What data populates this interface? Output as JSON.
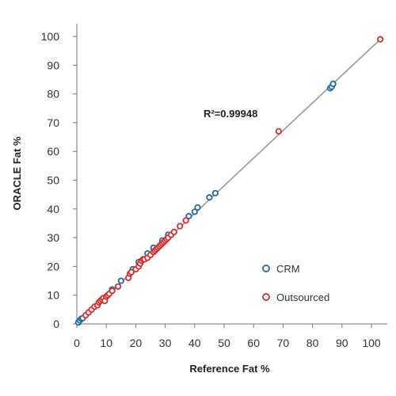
{
  "chart_data": {
    "type": "scatter",
    "xlabel": "Reference Fat %",
    "ylabel": "ORACLE Fat %",
    "xlim": [
      0,
      105
    ],
    "ylim": [
      0,
      102
    ],
    "x_ticks": [
      "0",
      "10",
      "20",
      "30",
      "40",
      "50",
      "60",
      "70",
      "80",
      "90",
      "100"
    ],
    "y_ticks": [
      "0",
      "10",
      "20",
      "30",
      "40",
      "50",
      "60",
      "70",
      "80",
      "90",
      "100"
    ],
    "grid": false,
    "legend_position": "bottom-right",
    "annotation": "R²=0.99948",
    "fit_line": {
      "x": [
        0,
        103
      ],
      "y": [
        0,
        99
      ]
    },
    "series": [
      {
        "name": "CRM",
        "color": "#1f6aa5",
        "points": [
          [
            0.5,
            0.5
          ],
          [
            1,
            1.2
          ],
          [
            1.5,
            1.8
          ],
          [
            2,
            2
          ],
          [
            12,
            12
          ],
          [
            15,
            15
          ],
          [
            19,
            19
          ],
          [
            21,
            21.5
          ],
          [
            24,
            24.5
          ],
          [
            26,
            26.5
          ],
          [
            29,
            29
          ],
          [
            31,
            31
          ],
          [
            38,
            37.5
          ],
          [
            40,
            39
          ],
          [
            41,
            40.5
          ],
          [
            45,
            44
          ],
          [
            47,
            45.5
          ],
          [
            86,
            82
          ],
          [
            86.5,
            82.5
          ],
          [
            87,
            83.5
          ]
        ]
      },
      {
        "name": "Outsourced",
        "color": "#d62e2e",
        "points": [
          [
            3,
            3
          ],
          [
            4,
            4
          ],
          [
            5,
            5
          ],
          [
            6,
            6
          ],
          [
            7,
            6.5
          ],
          [
            7.5,
            7.5
          ],
          [
            8,
            8
          ],
          [
            8.5,
            8.5
          ],
          [
            9,
            9
          ],
          [
            9.5,
            8
          ],
          [
            10,
            9.5
          ],
          [
            10.5,
            10
          ],
          [
            11,
            10.5
          ],
          [
            12,
            11.5
          ],
          [
            14,
            13
          ],
          [
            17.5,
            16
          ],
          [
            18,
            17.5
          ],
          [
            18.5,
            18
          ],
          [
            20,
            19
          ],
          [
            21,
            20
          ],
          [
            21.5,
            21
          ],
          [
            22,
            22
          ],
          [
            22.5,
            22.5
          ],
          [
            23,
            22.5
          ],
          [
            24,
            23
          ],
          [
            25,
            24
          ],
          [
            26,
            25
          ],
          [
            26.5,
            25.5
          ],
          [
            27,
            26
          ],
          [
            27.5,
            26.5
          ],
          [
            28,
            27
          ],
          [
            28.5,
            27.5
          ],
          [
            29,
            28
          ],
          [
            29.5,
            28.5
          ],
          [
            30,
            29
          ],
          [
            30.5,
            29.5
          ],
          [
            31,
            30
          ],
          [
            32,
            31
          ],
          [
            33,
            32
          ],
          [
            35,
            34
          ],
          [
            37,
            36
          ],
          [
            68.5,
            67
          ],
          [
            103,
            99
          ]
        ]
      }
    ]
  }
}
